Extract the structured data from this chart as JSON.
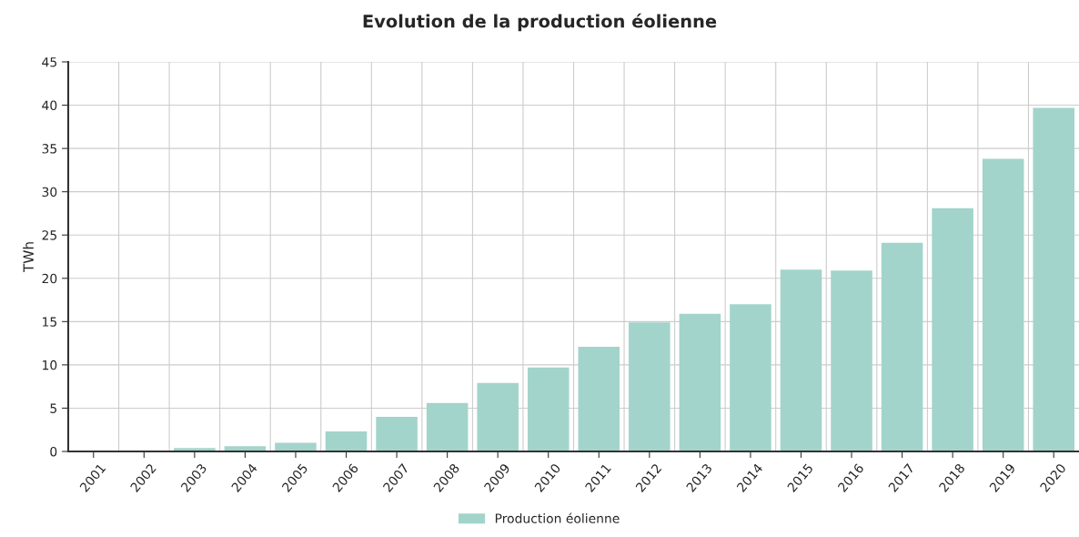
{
  "chart_data": {
    "type": "bar",
    "title": "Evolution de la production éolienne",
    "ylabel": "TWh",
    "categories": [
      "2001",
      "2002",
      "2003",
      "2004",
      "2005",
      "2006",
      "2007",
      "2008",
      "2009",
      "2010",
      "2011",
      "2012",
      "2013",
      "2014",
      "2015",
      "2016",
      "2017",
      "2018",
      "2019",
      "2020"
    ],
    "series": [
      {
        "name": "Production éolienne",
        "color": "#a2d4cb",
        "values": [
          null,
          null,
          0.4,
          0.6,
          1.0,
          2.3,
          4.0,
          5.6,
          7.9,
          9.7,
          12.1,
          14.9,
          15.9,
          17.0,
          21.0,
          20.9,
          24.1,
          28.1,
          33.8,
          39.7
        ]
      }
    ],
    "ylim": [
      0,
      45
    ],
    "yticks": [
      0,
      5,
      10,
      15,
      20,
      25,
      30,
      35,
      40,
      45
    ],
    "grid": true,
    "legend": "bottom"
  }
}
